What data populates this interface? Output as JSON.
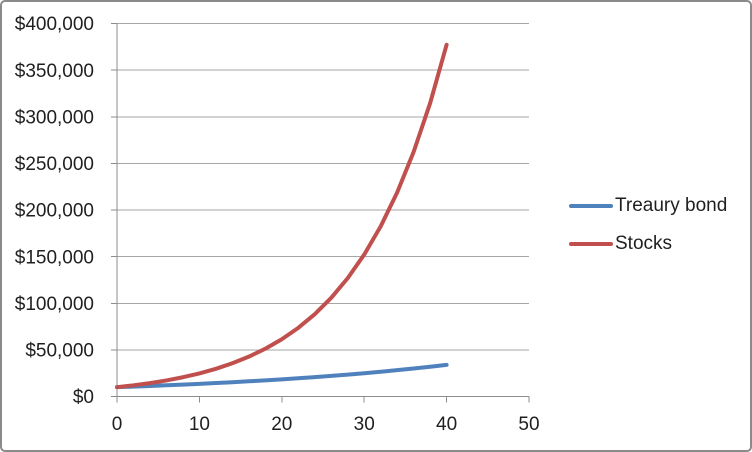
{
  "chart_data": {
    "type": "line",
    "title": "",
    "xlabel": "",
    "ylabel": "",
    "x": [
      0,
      2,
      4,
      6,
      8,
      10,
      12,
      14,
      16,
      18,
      20,
      22,
      24,
      26,
      28,
      30,
      32,
      34,
      36,
      38,
      40
    ],
    "series": [
      {
        "name": "Treaury bond",
        "color": "#4F81BD",
        "values": [
          10000,
          10630,
          11299,
          12010,
          12766,
          13570,
          14425,
          15333,
          16298,
          17324,
          18415,
          19575,
          20807,
          22117,
          23509,
          24990,
          26563,
          28235,
          30013,
          31903,
          33912
        ]
      },
      {
        "name": "Stocks",
        "color": "#C0504D",
        "values": [
          10000,
          11990,
          14377,
          17238,
          20669,
          24782,
          29714,
          35627,
          42718,
          51220,
          61413,
          73635,
          88290,
          105862,
          126931,
          152193,
          182482,
          218800,
          262345,
          314556,
          377198
        ]
      }
    ],
    "xlim": [
      0,
      50
    ],
    "ylim": [
      0,
      400000
    ],
    "x_ticks": [
      0,
      10,
      20,
      30,
      40,
      50
    ],
    "x_tick_labels": [
      "0",
      "10",
      "20",
      "30",
      "40",
      "50"
    ],
    "y_ticks": [
      0,
      50000,
      100000,
      150000,
      200000,
      250000,
      300000,
      350000,
      400000
    ],
    "y_tick_labels": [
      "$0",
      "$50,000",
      "$100,000",
      "$150,000",
      "$200,000",
      "$250,000",
      "$300,000",
      "$350,000",
      "$400,000"
    ],
    "legend_position": "right",
    "grid": "horizontal-only",
    "line_width": 4
  },
  "colors": {
    "gridline": "#A6A6A6",
    "axis": "#8C8C8C",
    "tick_label_text": "#1F1F1F",
    "frame_border": "#8A8A8A",
    "background": "#FFFFFF"
  }
}
